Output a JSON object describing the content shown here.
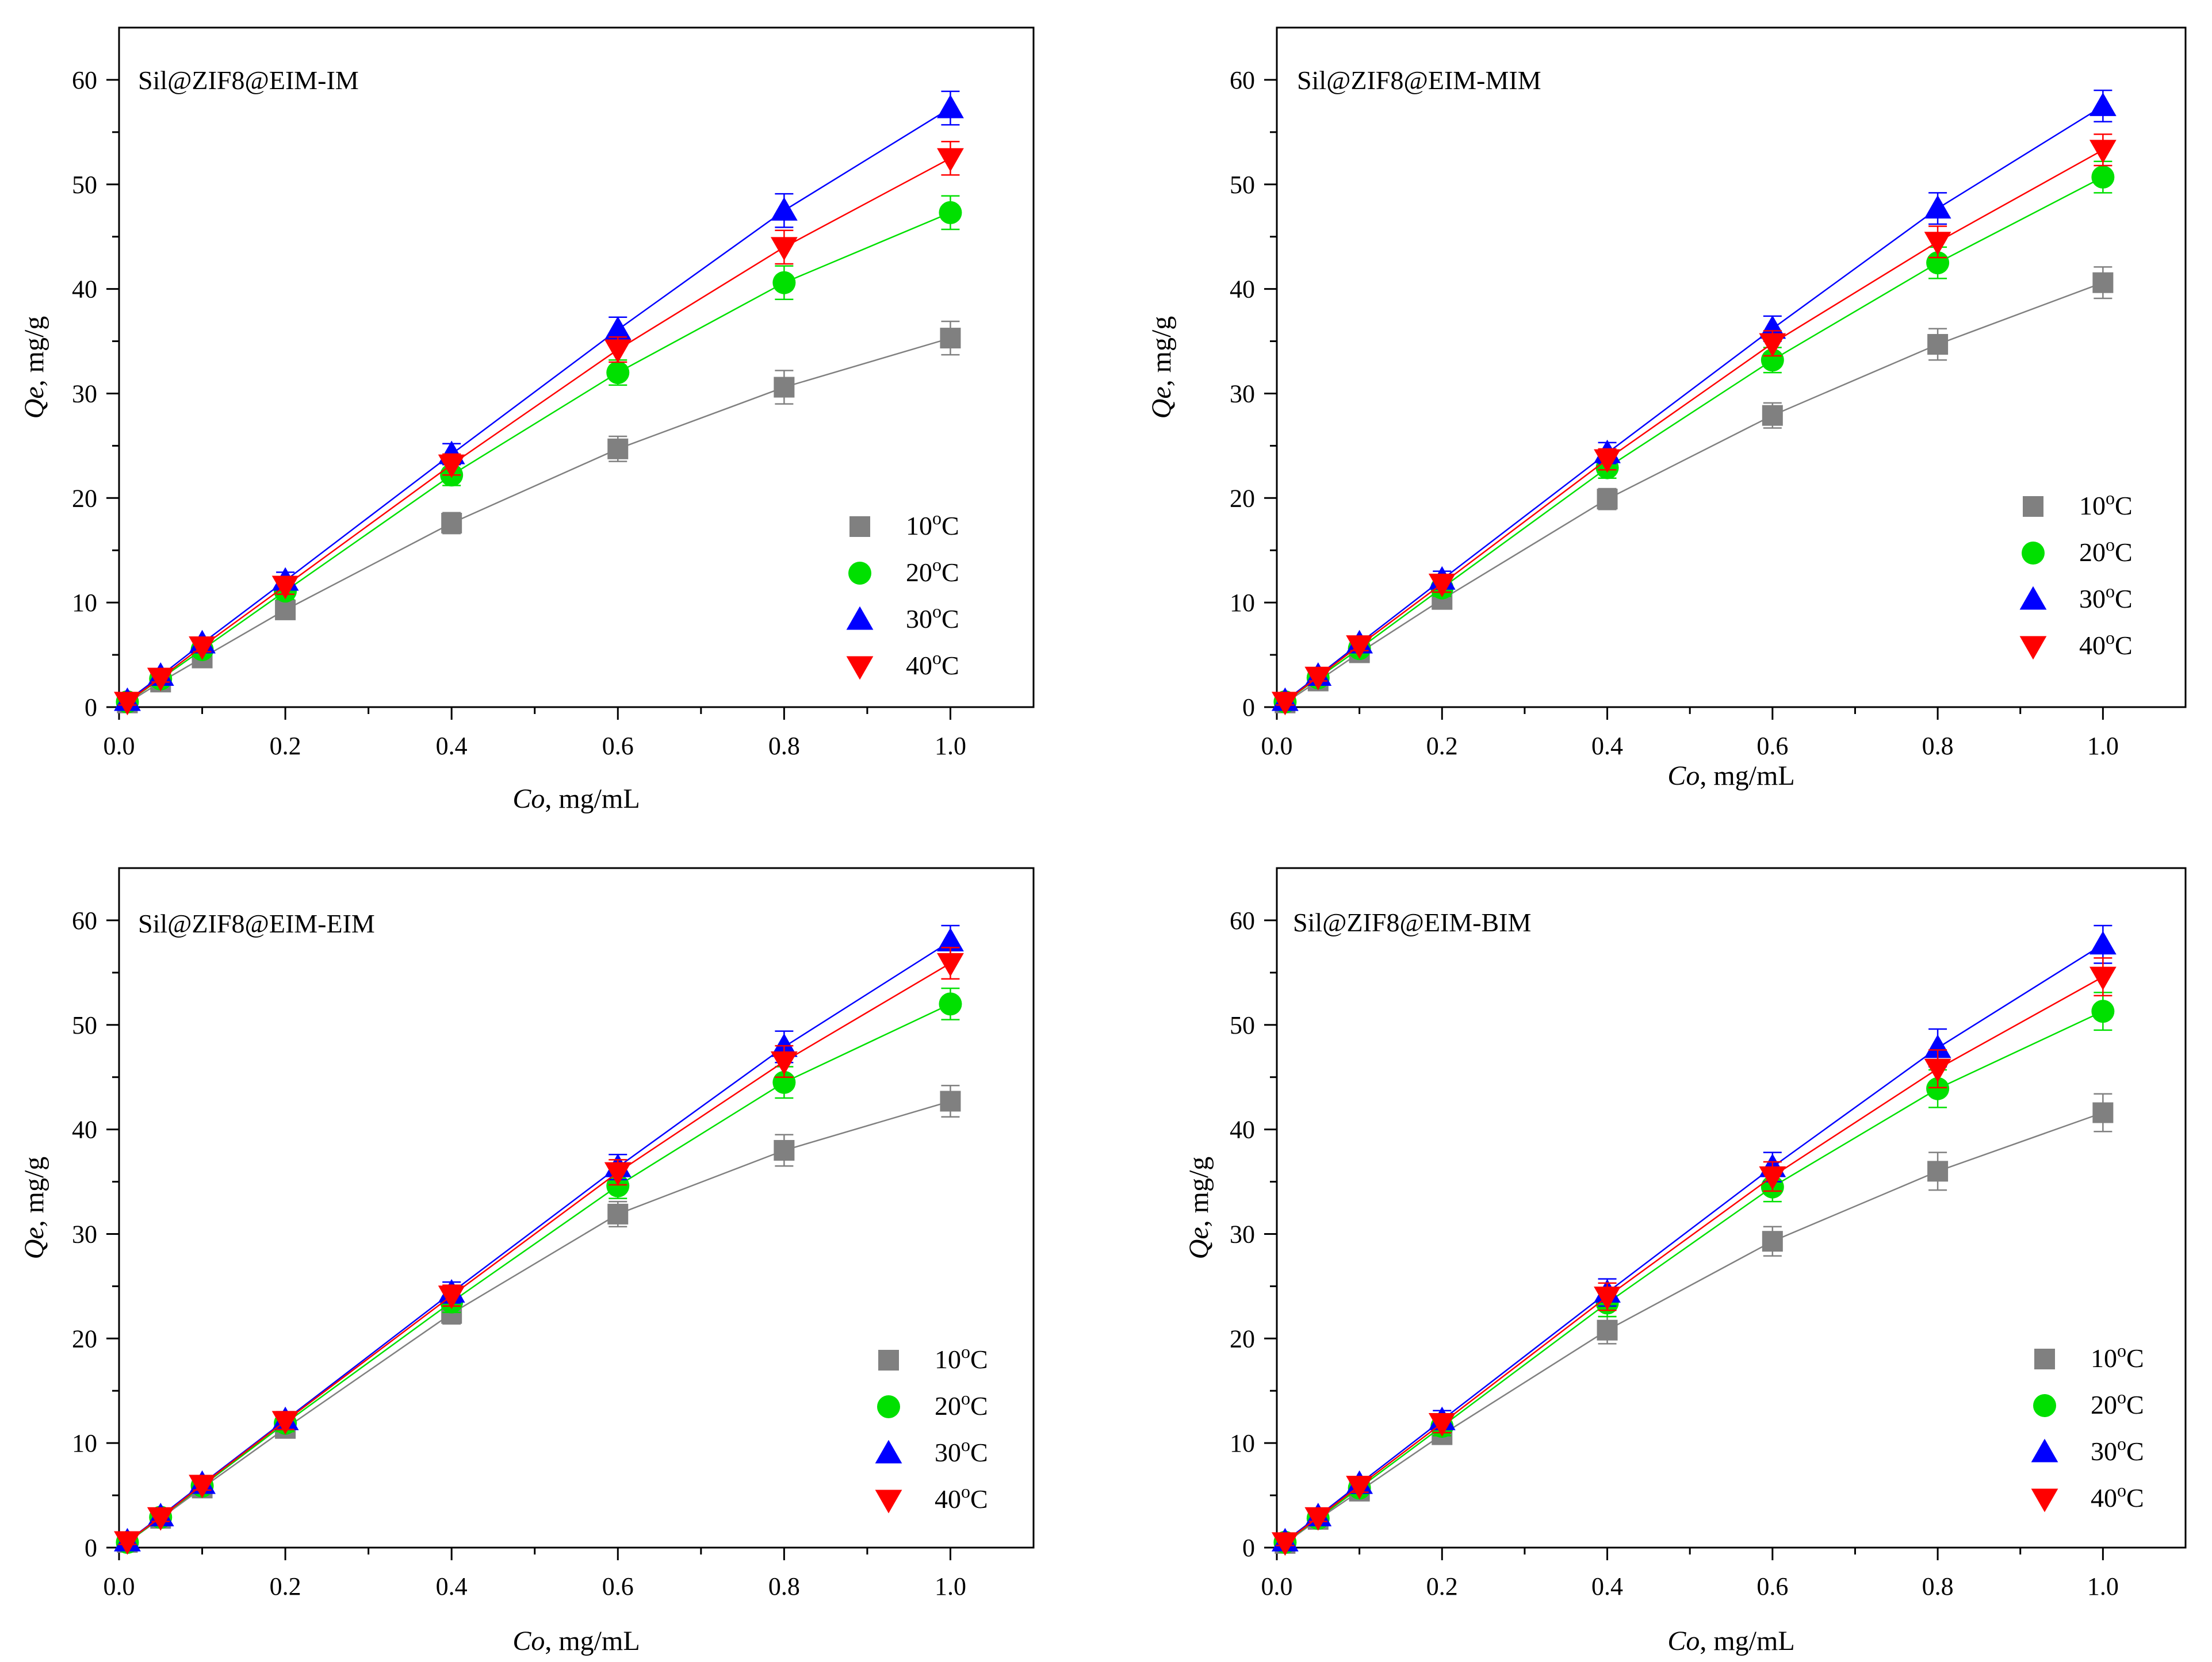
{
  "colors": {
    "10C": "#808080",
    "20C": "#00e000",
    "30C": "#0000ff",
    "40C": "#ff0000",
    "axis": "#000000"
  },
  "chart_data": [
    {
      "type": "scatter",
      "title": "Sil@ZIF8@EIM-IM",
      "xlabel_italic": "Co",
      "xlabel_rest": ", mg/mL",
      "ylabel_italic": "Qe",
      "ylabel_rest": ", mg/g",
      "xlim": [
        0.0,
        1.1
      ],
      "ylim": [
        0,
        65
      ],
      "xticks": [
        "0.0",
        "0.2",
        "0.4",
        "0.6",
        "0.8",
        "1.0"
      ],
      "yticks": [
        "0",
        "10",
        "20",
        "30",
        "40",
        "50",
        "60"
      ],
      "x": [
        0.01,
        0.05,
        0.1,
        0.2,
        0.4,
        0.6,
        0.8,
        1.0
      ],
      "legend_position": "right-lower",
      "series": [
        {
          "name": "10",
          "unit": "oC",
          "marker": "square",
          "color": "#808080",
          "values": [
            0.4,
            2.4,
            4.7,
            9.3,
            17.6,
            24.7,
            30.6,
            35.3
          ],
          "error": [
            0.3,
            0.4,
            0.5,
            0.8,
            1.0,
            1.2,
            1.6,
            1.6
          ]
        },
        {
          "name": "20",
          "unit": "oC",
          "marker": "circle",
          "color": "#00e000",
          "values": [
            0.5,
            2.7,
            5.5,
            11.1,
            22.2,
            32.0,
            40.6,
            47.3
          ],
          "error": [
            0.3,
            0.4,
            0.5,
            0.8,
            1.0,
            1.2,
            1.6,
            1.6
          ]
        },
        {
          "name": "30",
          "unit": "oC",
          "marker": "triangle-up",
          "color": "#0000ff",
          "values": [
            0.6,
            3.0,
            6.1,
            12.1,
            24.2,
            36.1,
            47.5,
            57.3
          ],
          "error": [
            0.3,
            0.4,
            0.5,
            0.8,
            1.0,
            1.2,
            1.6,
            1.6
          ]
        },
        {
          "name": "40",
          "unit": "oC",
          "marker": "triangle-down",
          "color": "#ff0000",
          "values": [
            0.5,
            2.8,
            5.8,
            11.6,
            23.2,
            34.2,
            44.0,
            52.5
          ],
          "error": [
            0.3,
            0.4,
            0.5,
            0.8,
            1.0,
            1.2,
            1.6,
            1.6
          ]
        }
      ]
    },
    {
      "type": "scatter",
      "title": "Sil@ZIF8@EIM-MIM",
      "xlabel_italic": "Co",
      "xlabel_rest": ", mg/mL",
      "ylabel_italic": "Qe",
      "ylabel_rest": ", mg/g",
      "xlim": [
        0.0,
        1.1
      ],
      "ylim": [
        0,
        65
      ],
      "xticks": [
        "0.0",
        "0.2",
        "0.4",
        "0.6",
        "0.8",
        "1.0"
      ],
      "yticks": [
        "0",
        "10",
        "20",
        "30",
        "40",
        "50",
        "60"
      ],
      "x": [
        0.01,
        0.05,
        0.1,
        0.2,
        0.4,
        0.6,
        0.8,
        1.0
      ],
      "legend_position": "right-middle",
      "series": [
        {
          "name": "10",
          "unit": "oC",
          "marker": "square",
          "color": "#808080",
          "values": [
            0.4,
            2.5,
            5.2,
            10.3,
            19.9,
            27.9,
            34.7,
            40.6
          ],
          "error": [
            0.3,
            0.4,
            0.5,
            0.8,
            1.0,
            1.2,
            1.5,
            1.5
          ]
        },
        {
          "name": "20",
          "unit": "oC",
          "marker": "circle",
          "color": "#00e000",
          "values": [
            0.5,
            2.8,
            5.6,
            11.4,
            22.9,
            33.2,
            42.5,
            50.7
          ],
          "error": [
            0.3,
            0.4,
            0.5,
            0.8,
            1.0,
            1.2,
            1.5,
            1.5
          ]
        },
        {
          "name": "30",
          "unit": "oC",
          "marker": "triangle-up",
          "color": "#0000ff",
          "values": [
            0.6,
            3.0,
            6.1,
            12.2,
            24.3,
            36.2,
            47.7,
            57.5
          ],
          "error": [
            0.3,
            0.4,
            0.5,
            0.8,
            1.0,
            1.2,
            1.5,
            1.5
          ]
        },
        {
          "name": "40",
          "unit": "oC",
          "marker": "triangle-down",
          "color": "#ff0000",
          "values": [
            0.5,
            2.9,
            5.9,
            11.8,
            23.7,
            34.8,
            44.5,
            53.3
          ],
          "error": [
            0.3,
            0.4,
            0.5,
            0.8,
            1.0,
            1.2,
            1.5,
            1.5
          ]
        }
      ]
    },
    {
      "type": "scatter",
      "title": "Sil@ZIF8@EIM-EIM",
      "xlabel_italic": "Co",
      "xlabel_rest": ", mg/mL",
      "ylabel_italic": "Qe",
      "ylabel_rest": ", mg/g",
      "xlim": [
        0.0,
        1.1
      ],
      "ylim": [
        0,
        65
      ],
      "xticks": [
        "0.0",
        "0.2",
        "0.4",
        "0.6",
        "0.8",
        "1.0"
      ],
      "yticks": [
        "0",
        "10",
        "20",
        "30",
        "40",
        "50",
        "60"
      ],
      "x": [
        0.01,
        0.05,
        0.1,
        0.2,
        0.4,
        0.6,
        0.8,
        1.0
      ],
      "legend_position": "right-lower",
      "series": [
        {
          "name": "10",
          "unit": "oC",
          "marker": "square",
          "color": "#808080",
          "values": [
            0.5,
            2.8,
            5.7,
            11.4,
            22.4,
            31.9,
            38.0,
            42.7
          ],
          "error": [
            0.3,
            0.4,
            0.5,
            0.8,
            1.0,
            1.2,
            1.5,
            1.5
          ]
        },
        {
          "name": "20",
          "unit": "oC",
          "marker": "circle",
          "color": "#00e000",
          "values": [
            0.5,
            2.9,
            5.9,
            11.9,
            23.5,
            34.6,
            44.5,
            52.0
          ],
          "error": [
            0.3,
            0.4,
            0.5,
            0.8,
            1.0,
            1.2,
            1.5,
            1.5
          ]
        },
        {
          "name": "30",
          "unit": "oC",
          "marker": "triangle-up",
          "color": "#0000ff",
          "values": [
            0.6,
            3.0,
            6.1,
            12.2,
            24.4,
            36.4,
            47.9,
            58.0
          ],
          "error": [
            0.3,
            0.4,
            0.5,
            0.8,
            1.0,
            1.2,
            1.5,
            1.5
          ]
        },
        {
          "name": "40",
          "unit": "oC",
          "marker": "triangle-down",
          "color": "#ff0000",
          "values": [
            0.6,
            2.9,
            6.0,
            12.1,
            24.1,
            35.9,
            46.5,
            55.9
          ],
          "error": [
            0.3,
            0.4,
            0.5,
            0.8,
            1.0,
            1.2,
            1.5,
            1.5
          ]
        }
      ]
    },
    {
      "type": "scatter",
      "title": "Sil@ZIF8@EIM-BIM",
      "xlabel_italic": "Co",
      "xlabel_rest": ", mg/mL",
      "ylabel_italic": "Qe",
      "ylabel_rest": ", mg/g",
      "xlim": [
        0.0,
        1.1
      ],
      "ylim": [
        0,
        65
      ],
      "xticks": [
        "0.0",
        "0.2",
        "0.4",
        "0.6",
        "0.8",
        "1.0"
      ],
      "yticks": [
        "0",
        "10",
        "20",
        "30",
        "40",
        "50",
        "60"
      ],
      "x": [
        0.01,
        0.05,
        0.1,
        0.2,
        0.4,
        0.6,
        0.8,
        1.0
      ],
      "legend_position": "right-lower",
      "series": [
        {
          "name": "10",
          "unit": "oC",
          "marker": "square",
          "color": "#808080",
          "values": [
            0.4,
            2.7,
            5.4,
            10.8,
            20.8,
            29.3,
            36.0,
            41.6
          ],
          "error": [
            0.3,
            0.4,
            0.6,
            0.9,
            1.3,
            1.4,
            1.8,
            1.8
          ]
        },
        {
          "name": "20",
          "unit": "oC",
          "marker": "circle",
          "color": "#00e000",
          "values": [
            0.5,
            2.8,
            5.7,
            11.6,
            23.4,
            34.5,
            43.9,
            51.3
          ],
          "error": [
            0.3,
            0.4,
            0.6,
            0.9,
            1.3,
            1.4,
            1.8,
            1.8
          ]
        },
        {
          "name": "30",
          "unit": "oC",
          "marker": "triangle-up",
          "color": "#0000ff",
          "values": [
            0.6,
            3.0,
            6.1,
            12.2,
            24.4,
            36.4,
            47.8,
            57.7
          ],
          "error": [
            0.3,
            0.4,
            0.6,
            0.9,
            1.3,
            1.4,
            1.8,
            1.8
          ]
        },
        {
          "name": "40",
          "unit": "oC",
          "marker": "triangle-down",
          "color": "#ff0000",
          "values": [
            0.5,
            2.9,
            5.9,
            11.9,
            24.0,
            35.5,
            45.8,
            54.6
          ],
          "error": [
            0.3,
            0.4,
            0.6,
            0.9,
            1.3,
            1.4,
            1.8,
            1.8
          ]
        }
      ]
    }
  ]
}
